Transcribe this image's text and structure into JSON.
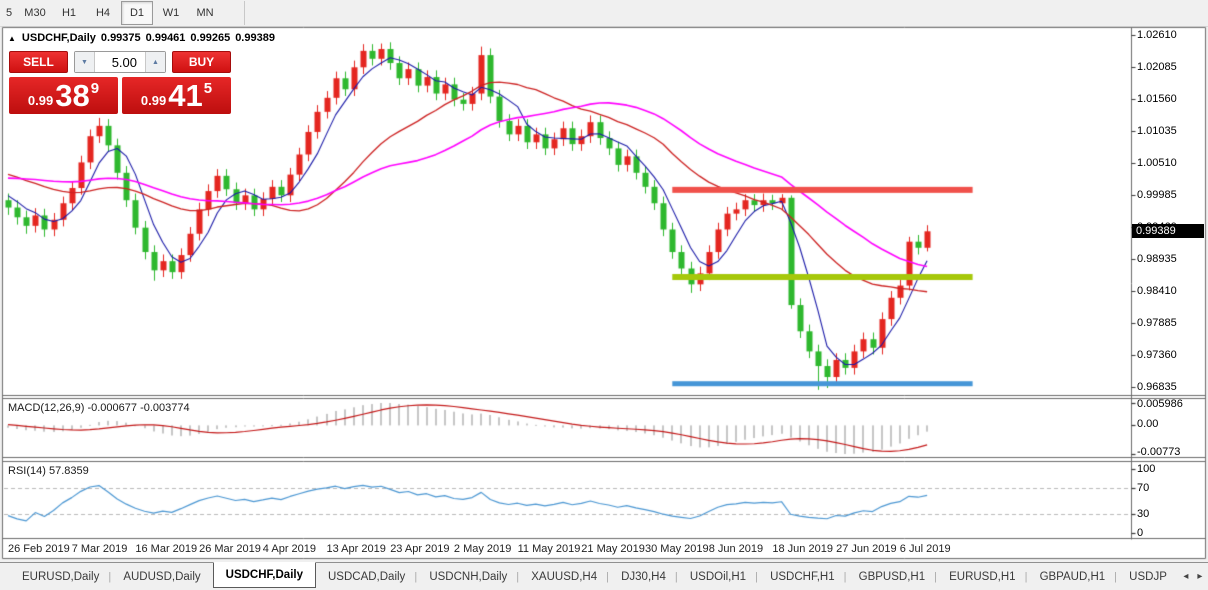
{
  "toolbar": {
    "timeframes": [
      {
        "label": "5",
        "active": false
      },
      {
        "label": "M30",
        "active": false
      },
      {
        "label": "H1",
        "active": false
      },
      {
        "label": "H4",
        "active": false
      },
      {
        "label": "D1",
        "active": true
      },
      {
        "label": "W1",
        "active": false
      },
      {
        "label": "MN",
        "active": false
      }
    ]
  },
  "chart_header": {
    "marker": "▲",
    "symbol": "USDCHF,Daily",
    "open": "0.99375",
    "high": "0.99461",
    "low": "0.99265",
    "close": "0.99389"
  },
  "trade_panel": {
    "sell_label": "SELL",
    "buy_label": "BUY",
    "volume": "5.00",
    "spinner_down_icon": "▼",
    "spinner_up_icon": "▲",
    "bid": {
      "prefix": "0.99",
      "big": "38",
      "sup": "9"
    },
    "ask": {
      "prefix": "0.99",
      "big": "41",
      "sup": "5"
    }
  },
  "price_axis": {
    "ticks": [
      "1.02610",
      "1.02085",
      "1.01560",
      "1.01035",
      "1.00510",
      "0.99985",
      "0.99460",
      "0.98935",
      "0.98410",
      "0.97885",
      "0.97360",
      "0.96835"
    ],
    "current": "0.99389"
  },
  "indicators": {
    "macd": {
      "label": "MACD(12,26,9) -0.000677 -0.003774",
      "axis": [
        "0.005986",
        "0.00",
        "-0.00773"
      ]
    },
    "rsi": {
      "label": "RSI(14) 57.8359",
      "axis": [
        "100",
        "70",
        "30",
        "0"
      ]
    }
  },
  "date_axis": [
    "26 Feb 2019",
    "7 Mar 2019",
    "16 Mar 2019",
    "26 Mar 2019",
    "4 Apr 2019",
    "13 Apr 2019",
    "23 Apr 2019",
    "2 May 2019",
    "11 May 2019",
    "21 May 2019",
    "30 May 2019",
    "8 Jun 2019",
    "18 Jun 2019",
    "27 Jun 2019",
    "6 Jul 2019"
  ],
  "tabbar": {
    "left_arrow": "◂",
    "right_arrow": "▸",
    "tabs": [
      {
        "label": "EURUSD,Daily",
        "active": false
      },
      {
        "label": "AUDUSD,Daily",
        "active": false
      },
      {
        "label": "USDCHF,Daily",
        "active": true
      },
      {
        "label": "USDCAD,Daily",
        "active": false
      },
      {
        "label": "USDCNH,Daily",
        "active": false
      },
      {
        "label": "XAUUSD,H4",
        "active": false
      },
      {
        "label": "DJ30,H4",
        "active": false
      },
      {
        "label": "USDOil,H1",
        "active": false
      },
      {
        "label": "USDCHF,H1",
        "active": false
      },
      {
        "label": "GBPUSD,H1",
        "active": false
      },
      {
        "label": "EURUSD,H1",
        "active": false
      },
      {
        "label": "GBPAUD,H1",
        "active": false
      },
      {
        "label": "USDJP",
        "active": false
      }
    ]
  },
  "chart_data": {
    "type": "candlestick",
    "symbol": "USDCHF",
    "timeframe": "Daily",
    "ohlc_current": {
      "open": 0.99375,
      "high": 0.99461,
      "low": 0.99265,
      "close": 0.99389
    },
    "ylim": [
      0.96705,
      1.02725
    ],
    "bull_color": "#e42620",
    "bear_color": "#2eb82e",
    "candles": [
      [
        0.999,
        1.0001,
        0.9966,
        0.9978
      ],
      [
        0.9978,
        0.999,
        0.995,
        0.9962
      ],
      [
        0.9962,
        0.9973,
        0.9935,
        0.9948
      ],
      [
        0.9948,
        0.9977,
        0.9937,
        0.9965
      ],
      [
        0.9965,
        0.9976,
        0.993,
        0.9942
      ],
      [
        0.9942,
        0.9969,
        0.9931,
        0.9958
      ],
      [
        0.9958,
        0.9996,
        0.9947,
        0.9985
      ],
      [
        0.9985,
        1.0021,
        0.9974,
        1.001
      ],
      [
        1.001,
        1.0063,
        0.9999,
        1.0052
      ],
      [
        1.0052,
        1.0106,
        1.0041,
        1.0095
      ],
      [
        1.0095,
        1.0125,
        1.0084,
        1.0112
      ],
      [
        1.0112,
        1.0123,
        1.0069,
        1.008
      ],
      [
        1.008,
        1.0091,
        1.0024,
        1.0035
      ],
      [
        1.0035,
        1.0046,
        0.9979,
        0.999
      ],
      [
        0.999,
        1.0001,
        0.9934,
        0.9945
      ],
      [
        0.9945,
        0.9956,
        0.9893,
        0.9905
      ],
      [
        0.9905,
        0.9916,
        0.9858,
        0.9875
      ],
      [
        0.9875,
        0.9901,
        0.9864,
        0.989
      ],
      [
        0.989,
        0.9901,
        0.9861,
        0.9872
      ],
      [
        0.9872,
        0.9911,
        0.9861,
        0.99
      ],
      [
        0.99,
        0.9946,
        0.9889,
        0.9935
      ],
      [
        0.9935,
        0.9986,
        0.9924,
        0.9975
      ],
      [
        0.9975,
        1.0016,
        0.9964,
        1.0005
      ],
      [
        1.0005,
        1.0041,
        0.9994,
        1.003
      ],
      [
        1.003,
        1.0041,
        0.9997,
        1.0008
      ],
      [
        1.0008,
        1.0019,
        0.9974,
        0.9985
      ],
      [
        0.9985,
        1.0009,
        0.9974,
        0.9998
      ],
      [
        0.9998,
        1.0009,
        0.9964,
        0.9975
      ],
      [
        0.9975,
        1.0003,
        0.9964,
        0.9992
      ],
      [
        0.9992,
        1.0023,
        0.9981,
        1.0012
      ],
      [
        1.0012,
        1.0023,
        0.9987,
        0.9998
      ],
      [
        0.9998,
        1.0043,
        0.9987,
        1.0032
      ],
      [
        1.0032,
        1.0076,
        1.0021,
        1.0065
      ],
      [
        1.0065,
        1.0113,
        1.0054,
        1.0102
      ],
      [
        1.0102,
        1.0146,
        1.0091,
        1.0135
      ],
      [
        1.0135,
        1.0169,
        1.0124,
        1.0158
      ],
      [
        1.0158,
        1.0201,
        1.0147,
        1.019
      ],
      [
        1.019,
        1.0201,
        1.0161,
        1.0172
      ],
      [
        1.0172,
        1.0219,
        1.0161,
        1.0208
      ],
      [
        1.0208,
        1.0246,
        1.0197,
        1.0235
      ],
      [
        1.0235,
        1.0246,
        1.0211,
        1.0222
      ],
      [
        1.0222,
        1.0247,
        1.0211,
        1.0238
      ],
      [
        1.0238,
        1.0249,
        1.0204,
        1.0215
      ],
      [
        1.0215,
        1.0226,
        1.0179,
        1.019
      ],
      [
        1.019,
        1.0216,
        1.0179,
        1.0205
      ],
      [
        1.0205,
        1.0216,
        1.0167,
        1.0178
      ],
      [
        1.0178,
        1.0203,
        1.0167,
        1.0192
      ],
      [
        1.0192,
        1.0203,
        1.0154,
        1.0165
      ],
      [
        1.0165,
        1.0191,
        1.0154,
        1.018
      ],
      [
        1.018,
        1.0191,
        1.0144,
        1.0155
      ],
      [
        1.0155,
        1.0166,
        1.0137,
        1.0148
      ],
      [
        1.0148,
        1.0176,
        1.0137,
        1.0165
      ],
      [
        1.0165,
        1.0242,
        1.0154,
        1.0228
      ],
      [
        1.0228,
        1.0239,
        1.0149,
        1.016
      ],
      [
        1.016,
        1.0171,
        1.0109,
        1.012
      ],
      [
        1.012,
        1.0131,
        1.0087,
        1.0098
      ],
      [
        1.0098,
        1.0123,
        1.0087,
        1.0112
      ],
      [
        1.0112,
        1.0123,
        1.0074,
        1.0085
      ],
      [
        1.0085,
        1.0109,
        1.0074,
        1.0098
      ],
      [
        1.0098,
        1.0109,
        1.0064,
        1.0075
      ],
      [
        1.0075,
        1.0101,
        1.0064,
        1.009
      ],
      [
        1.009,
        1.0119,
        1.0079,
        1.0108
      ],
      [
        1.0108,
        1.0119,
        1.0071,
        1.0082
      ],
      [
        1.0082,
        1.0106,
        1.0071,
        1.0095
      ],
      [
        1.0095,
        1.0129,
        1.0084,
        1.0118
      ],
      [
        1.0118,
        1.0129,
        1.0081,
        1.0092
      ],
      [
        1.0092,
        1.0103,
        1.0064,
        1.0075
      ],
      [
        1.0075,
        1.0086,
        1.0037,
        1.0048
      ],
      [
        1.0048,
        1.0073,
        1.0037,
        1.0062
      ],
      [
        1.0062,
        1.0073,
        1.0024,
        1.0035
      ],
      [
        1.0035,
        1.0046,
        1.0001,
        1.0012
      ],
      [
        1.0012,
        1.0023,
        0.9974,
        0.9985
      ],
      [
        0.9985,
        0.9996,
        0.9931,
        0.9942
      ],
      [
        0.9942,
        0.9953,
        0.9894,
        0.9905
      ],
      [
        0.9905,
        0.9916,
        0.9867,
        0.9878
      ],
      [
        0.9878,
        0.9889,
        0.9838,
        0.9852
      ],
      [
        0.9852,
        0.9881,
        0.9841,
        0.987
      ],
      [
        0.987,
        0.9916,
        0.9859,
        0.9905
      ],
      [
        0.9905,
        0.9953,
        0.9894,
        0.9942
      ],
      [
        0.9942,
        0.9979,
        0.9931,
        0.9968
      ],
      [
        0.9968,
        0.9986,
        0.9957,
        0.9975
      ],
      [
        0.9975,
        1.0,
        0.9964,
        0.999
      ],
      [
        0.999,
        1.0,
        0.9971,
        0.9982
      ],
      [
        0.9982,
        1.0001,
        0.9971,
        0.999
      ],
      [
        0.999,
        0.9999,
        0.9974,
        0.9985
      ],
      [
        0.9985,
        1.0,
        0.9974,
        0.9994
      ],
      [
        0.9994,
        0.9998,
        0.9812,
        0.9818
      ],
      [
        0.9818,
        0.9829,
        0.9764,
        0.9775
      ],
      [
        0.9775,
        0.9786,
        0.9731,
        0.9742
      ],
      [
        0.9742,
        0.9753,
        0.9679,
        0.9718
      ],
      [
        0.9718,
        0.9729,
        0.9682,
        0.97
      ],
      [
        0.97,
        0.9739,
        0.9689,
        0.9728
      ],
      [
        0.9728,
        0.9739,
        0.9704,
        0.9715
      ],
      [
        0.9715,
        0.9753,
        0.9704,
        0.9742
      ],
      [
        0.9742,
        0.9773,
        0.9731,
        0.9762
      ],
      [
        0.9762,
        0.9773,
        0.9737,
        0.9748
      ],
      [
        0.9748,
        0.9806,
        0.9737,
        0.9795
      ],
      [
        0.9795,
        0.9841,
        0.9784,
        0.983
      ],
      [
        0.983,
        0.9861,
        0.9819,
        0.985
      ],
      [
        0.985,
        0.993,
        0.9842,
        0.9922
      ],
      [
        0.9922,
        0.9933,
        0.9901,
        0.9912
      ],
      [
        0.9912,
        0.9949,
        0.9906,
        0.9939
      ]
    ],
    "warmup_closes_for_indicators": [
      0.997,
      0.9975,
      0.9982,
      0.999,
      0.9998,
      1.0005,
      1.0012,
      1.0018,
      1.0024,
      1.003,
      1.0036,
      1.0042,
      1.0048,
      1.0053,
      1.0058,
      1.0062,
      1.006,
      1.0058,
      1.0055,
      1.0052,
      1.0049,
      1.0046,
      1.0043,
      1.004,
      1.0037,
      1.0034,
      1.003,
      1.0026,
      1.0022,
      1.0018,
      1.0012,
      1.0005,
      0.9998,
      0.9995
    ],
    "overlays": [
      {
        "name": "ma-fast",
        "period": 5,
        "color": "#1a1aa8"
      },
      {
        "name": "ma-mid",
        "period": 21,
        "color": "#cc2020"
      },
      {
        "name": "ma-slow",
        "period": 34,
        "color": "#ff00ff"
      }
    ],
    "hlines": [
      {
        "name": "resistance-line",
        "price": 1.0007,
        "color": "#f0504a",
        "thickness": 6,
        "from_index": 73,
        "to_index": 106
      },
      {
        "name": "support-line",
        "price": 0.9864,
        "color": "#a6c80a",
        "thickness": 6,
        "from_index": 73,
        "to_index": 106
      },
      {
        "name": "lower-support-line",
        "price": 0.9689,
        "color": "#4596d7",
        "thickness": 5,
        "from_index": 73,
        "to_index": 106
      }
    ],
    "macd": {
      "fast": 12,
      "slow": 26,
      "signal": 9,
      "last_main": -0.000677,
      "last_signal": -0.003774,
      "histogram_color": "#c6c6c6",
      "signal_color": "#c31717",
      "range": [
        -0.00773,
        0.005986
      ]
    },
    "rsi": {
      "period": 14,
      "last": 57.8359,
      "levels": [
        70,
        30
      ],
      "color": "#4a96d2",
      "range": [
        0,
        100
      ]
    }
  }
}
